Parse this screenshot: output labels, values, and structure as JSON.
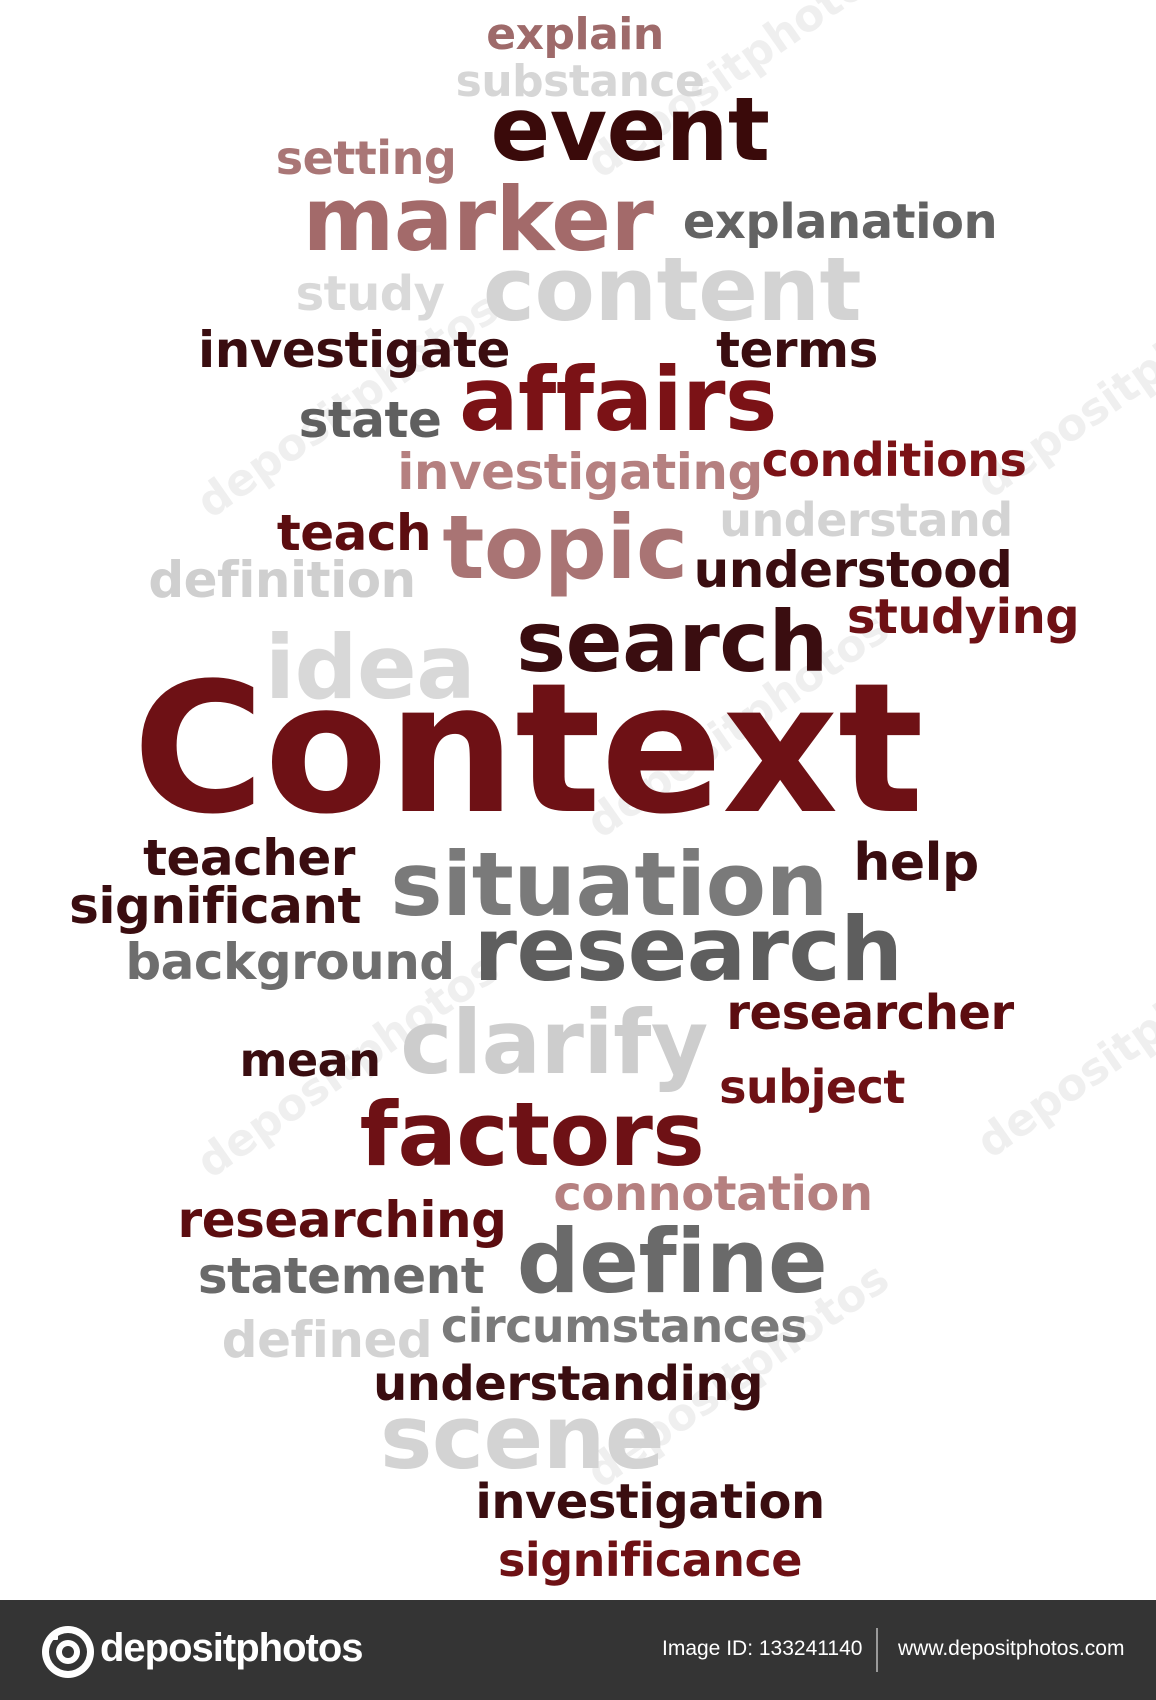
{
  "words": [
    {
      "text": "explain",
      "color": "#9e6a6a"
    },
    {
      "text": "substance",
      "color": "#d6d6d6"
    },
    {
      "text": "event",
      "color": "#3a0a0a"
    },
    {
      "text": "setting",
      "color": "#a97676"
    },
    {
      "text": "marker",
      "color": "#a36a6a"
    },
    {
      "text": "explanation",
      "color": "#636363"
    },
    {
      "text": "study",
      "color": "#d9d9d9"
    },
    {
      "text": "content",
      "color": "#d3d3d3"
    },
    {
      "text": "investigate",
      "color": "#3a0d10"
    },
    {
      "text": "terms",
      "color": "#3a0d10"
    },
    {
      "text": "affairs",
      "color": "#7b1216"
    },
    {
      "text": "state",
      "color": "#5f5f5f"
    },
    {
      "text": "investigating",
      "color": "#b58080"
    },
    {
      "text": "conditions",
      "color": "#7b1216"
    },
    {
      "text": "teach",
      "color": "#5c0d10"
    },
    {
      "text": "topic",
      "color": "#a97474"
    },
    {
      "text": "understand",
      "color": "#d3d3d3"
    },
    {
      "text": "definition",
      "color": "#cfcfcf"
    },
    {
      "text": "understood",
      "color": "#3a0d10"
    },
    {
      "text": "studying",
      "color": "#6e1115"
    },
    {
      "text": "idea",
      "color": "#d8d8d8"
    },
    {
      "text": "search",
      "color": "#3a0d10"
    },
    {
      "text": "Context",
      "color": "#6e1115"
    },
    {
      "text": "teacher",
      "color": "#3a0d10"
    },
    {
      "text": "situation",
      "color": "#7a7a7a"
    },
    {
      "text": "help",
      "color": "#3a0d10"
    },
    {
      "text": "significant",
      "color": "#3a0d10"
    },
    {
      "text": "background",
      "color": "#6e6e6e"
    },
    {
      "text": "research",
      "color": "#5e5e5e"
    },
    {
      "text": "researcher",
      "color": "#5c0d10"
    },
    {
      "text": "clarify",
      "color": "#cdcdcd"
    },
    {
      "text": "mean",
      "color": "#3a0d10"
    },
    {
      "text": "subject",
      "color": "#6e1115"
    },
    {
      "text": "factors",
      "color": "#6e1115"
    },
    {
      "text": "connotation",
      "color": "#b58080"
    },
    {
      "text": "researching",
      "color": "#5c0d10"
    },
    {
      "text": "define",
      "color": "#6a6a6a"
    },
    {
      "text": "statement",
      "color": "#6a6a6a"
    },
    {
      "text": "defined",
      "color": "#d3d3d3"
    },
    {
      "text": "circumstances",
      "color": "#7a7a7a"
    },
    {
      "text": "understanding",
      "color": "#3a0d10"
    },
    {
      "text": "scene",
      "color": "#d3d3d3"
    },
    {
      "text": "investigation",
      "color": "#3a0d10"
    },
    {
      "text": "significance",
      "color": "#6e1115"
    }
  ],
  "watermark": {
    "text": "depositphotos"
  },
  "footer": {
    "brand": "depositphotos",
    "image_id": "Image ID: 133241140",
    "url": "www.depositphotos.com"
  }
}
